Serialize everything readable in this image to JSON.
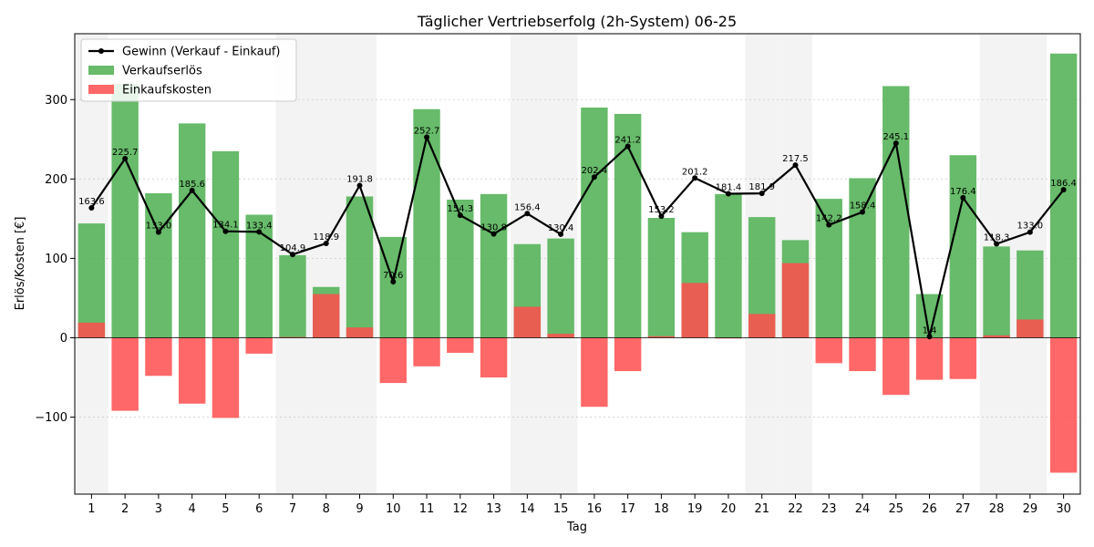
{
  "chart_data": {
    "type": "bar",
    "title": "Täglicher Vertriebserfolg (2h-System) 06-25",
    "xlabel": "Tag",
    "ylabel": "Erlös/Kosten [€]",
    "categories": [
      "1",
      "2",
      "3",
      "4",
      "5",
      "6",
      "7",
      "8",
      "9",
      "10",
      "11",
      "12",
      "13",
      "14",
      "15",
      "16",
      "17",
      "18",
      "19",
      "20",
      "21",
      "22",
      "23",
      "24",
      "25",
      "26",
      "27",
      "28",
      "29",
      "30"
    ],
    "ylim": [
      -197,
      383
    ],
    "yticks": [
      -100,
      0,
      100,
      200,
      300
    ],
    "grid": true,
    "legend_position": "upper-left",
    "shaded_days": [
      "1",
      "7",
      "8",
      "9",
      "14",
      "15",
      "21",
      "22",
      "28",
      "29"
    ],
    "series": [
      {
        "name": "Verkaufserlös",
        "kind": "bar",
        "color": "#4caf50",
        "values": [
          144,
          320,
          182,
          270,
          235,
          155,
          104,
          64,
          178,
          127,
          288,
          174,
          181,
          118,
          125,
          290,
          282,
          151,
          133,
          181,
          152,
          123,
          175,
          201,
          317,
          55,
          230,
          115,
          110,
          358
        ]
      },
      {
        "name": "Einkaufskosten",
        "kind": "bar",
        "color": "#ff4d4d",
        "values": [
          19,
          -92,
          -48,
          -83,
          -101,
          -20,
          1,
          55,
          13,
          -57,
          -36,
          -19,
          -50,
          39,
          5,
          -87,
          -42,
          2,
          69,
          -1,
          30,
          94,
          -32,
          -42,
          -72,
          -53,
          -52,
          3,
          23,
          -170
        ]
      },
      {
        "name": "Gewinn (Verkauf - Einkauf)",
        "kind": "line",
        "color": "#000000",
        "values": [
          163.6,
          225.7,
          133.0,
          185.6,
          134.1,
          133.4,
          104.9,
          118.9,
          191.8,
          70.6,
          252.7,
          154.3,
          130.8,
          156.4,
          130.4,
          202.4,
          241.2,
          153.2,
          201.2,
          181.4,
          181.9,
          217.5,
          142.2,
          158.4,
          245.1,
          1.4,
          176.4,
          118.3,
          133.0,
          186.4
        ],
        "labels": [
          "163.6",
          "225.7",
          "133.0",
          "185.6",
          "134.1",
          "133.4",
          "104.9",
          "118.9",
          "191.8",
          "70.6",
          "252.7",
          "154.3",
          "130.8",
          "156.4",
          "130.4",
          "202.4",
          "241.2",
          "153.2",
          "201.2",
          "181.4",
          "181.9",
          "217.5",
          "142.2",
          "158.4",
          "245.1",
          "1.4",
          "176.4",
          "118.3",
          "133.0",
          "186.4"
        ]
      }
    ],
    "legend_order": [
      "Gewinn (Verkauf - Einkauf)",
      "Verkaufserlös",
      "Einkaufskosten"
    ]
  }
}
